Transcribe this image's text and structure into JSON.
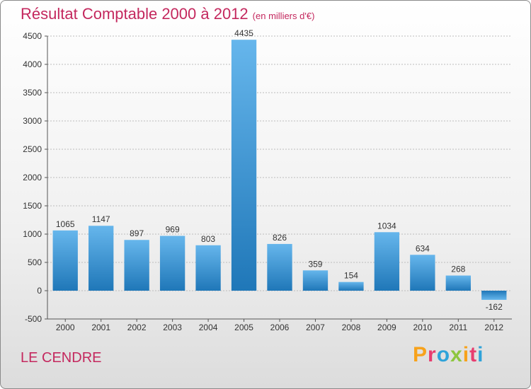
{
  "header": {
    "title": "Résultat Comptable 2000 à 2012",
    "subtitle": "(en milliers d'€)"
  },
  "footer": {
    "commune": "LE CENDRE",
    "logo": "Proxiti"
  },
  "colors": {
    "bar_light": "#62b3ea",
    "bar_dark": "#1f77b8",
    "title": "#c4285e",
    "grid": "#bcbcbc"
  },
  "chart_data": {
    "type": "bar",
    "title": "Résultat Comptable 2000 à 2012",
    "subtitle": "(en milliers d'€)",
    "categories": [
      "2000",
      "2001",
      "2002",
      "2003",
      "2004",
      "2005",
      "2006",
      "2007",
      "2008",
      "2009",
      "2010",
      "2011",
      "2012"
    ],
    "values": [
      1065,
      1147,
      897,
      969,
      803,
      4435,
      826,
      359,
      154,
      1034,
      634,
      268,
      -162
    ],
    "data_labels": [
      "1065",
      "1147",
      "897",
      "969",
      "803",
      "4435",
      "826",
      "359",
      "154",
      "1034",
      "634",
      "268",
      "-162"
    ],
    "y_ticks": [
      -500,
      0,
      500,
      1000,
      1500,
      2000,
      2500,
      3000,
      3500,
      4000,
      4500
    ],
    "ylim": [
      -500,
      4500
    ],
    "grid": true,
    "xlabel": "",
    "ylabel": ""
  }
}
